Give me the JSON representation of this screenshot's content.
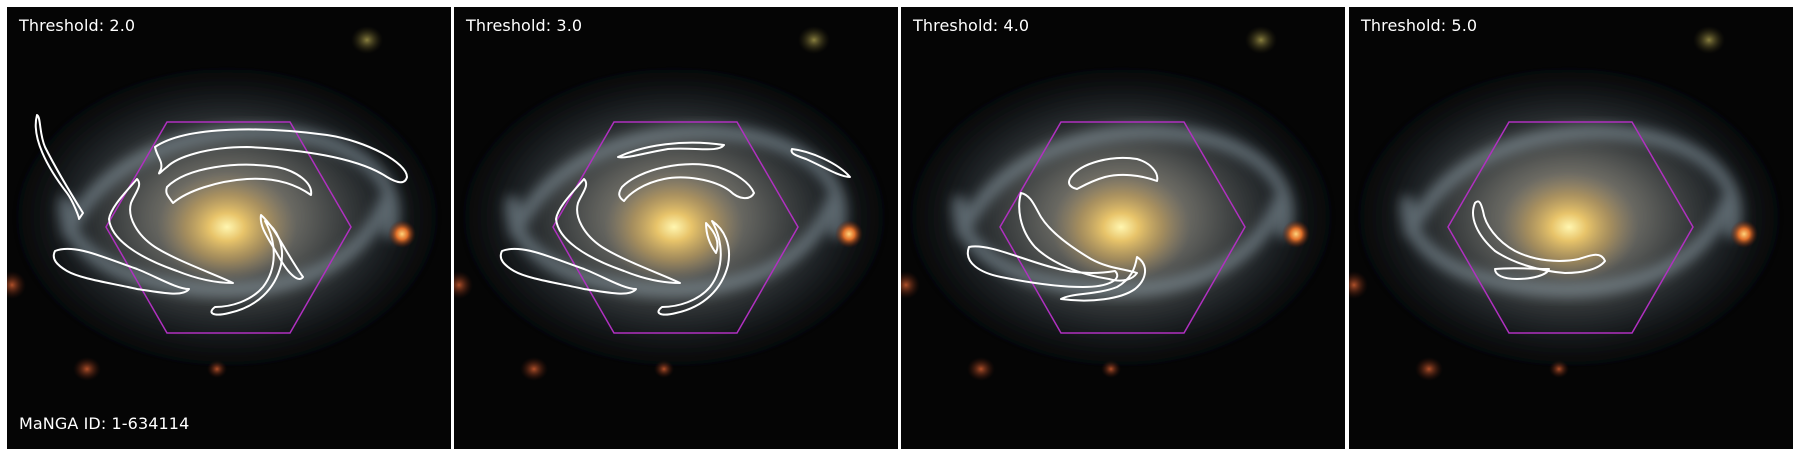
{
  "panels": [
    {
      "threshold_label": "Threshold: 2.0"
    },
    {
      "threshold_label": "Threshold: 3.0"
    },
    {
      "threshold_label": "Threshold: 4.0"
    },
    {
      "threshold_label": "Threshold: 5.0"
    }
  ],
  "galaxy_id_label": "MaNGA ID: 1-634114",
  "colors": {
    "contour": "#ffffff",
    "hexagon": "#b030c0",
    "sky": "#050505"
  }
}
